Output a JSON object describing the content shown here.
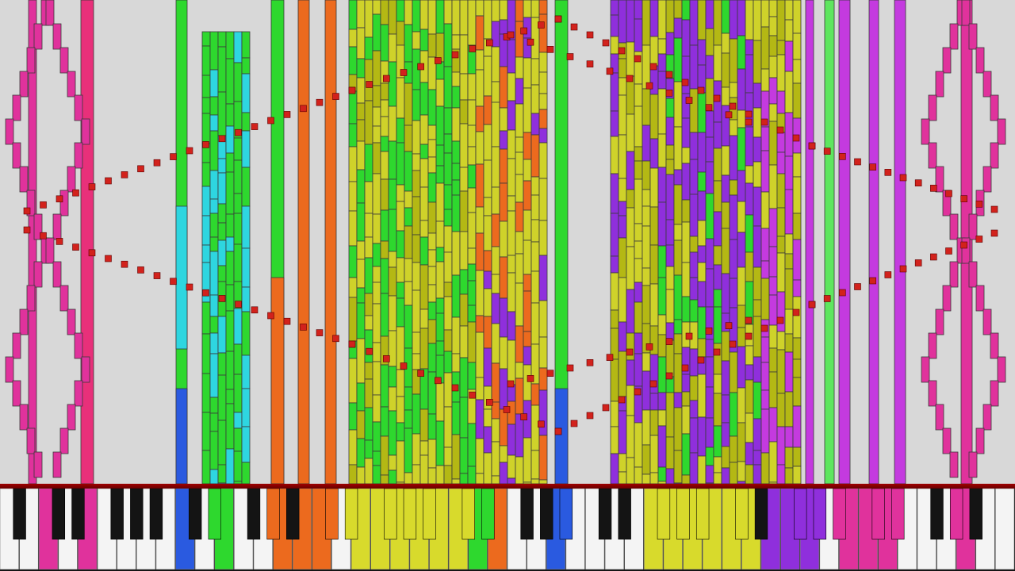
{
  "visualizer": {
    "background": "#d8d8d8",
    "note_border": "#3a3a3a",
    "palette": {
      "magenta": "#e0329c",
      "crimson": "#e8307a",
      "green": "#2ed82e",
      "lime": "#5ee65e",
      "cyan": "#2ed6e0",
      "orange": "#ec6a1e",
      "yellow": "#cfd22a",
      "olive": "#b4b814",
      "purple": "#8f2fdc",
      "blue": "#2a5ae0",
      "violet": "#c43adf",
      "red_dot": "#d2221c"
    }
  },
  "keyboard": {
    "white_key": "#f4f4f4",
    "black_key": "#141414",
    "pressed_colors": {
      "magenta": "#e0329c",
      "green": "#2ed82e",
      "cyan": "#2ed6e0",
      "orange": "#ec6a1e",
      "yellow": "#d8da2c",
      "purple": "#8f2fdc",
      "blue": "#2a5ae0",
      "red": "#e82020"
    }
  }
}
